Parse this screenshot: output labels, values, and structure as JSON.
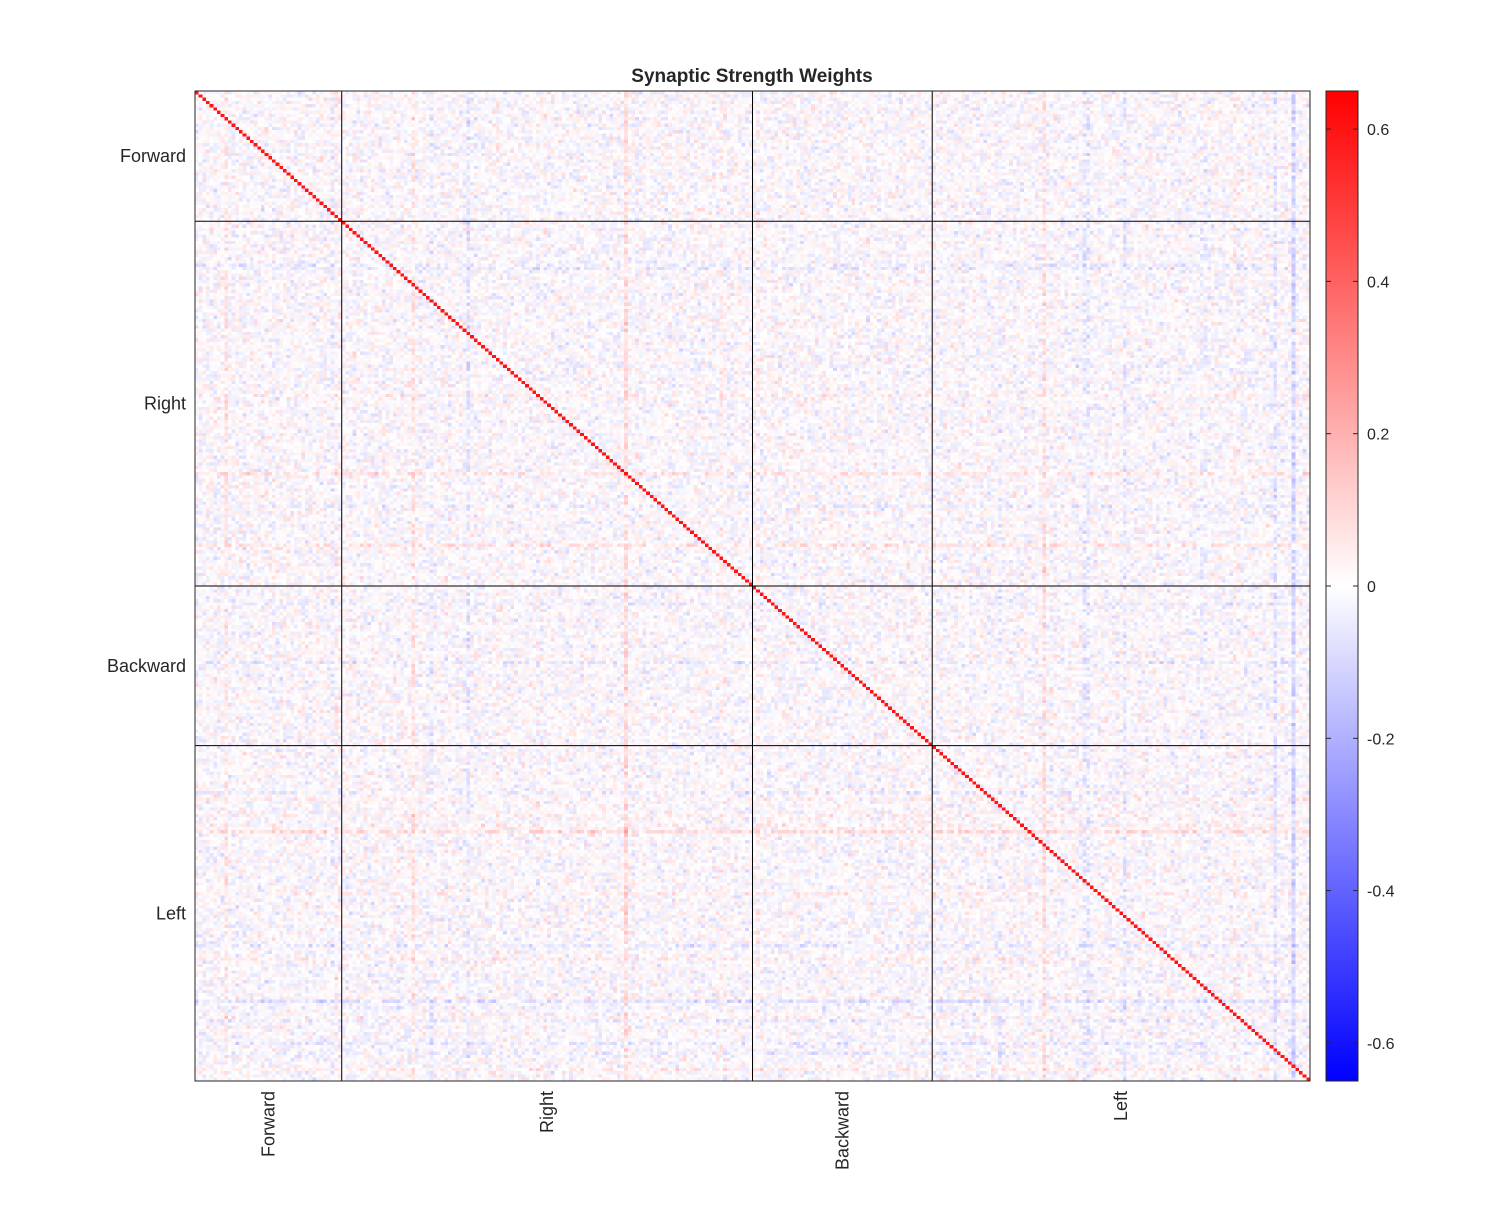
{
  "chart_data": {
    "type": "heatmap",
    "title": "Synaptic Strength Weights",
    "xlabel": "",
    "ylabel": "",
    "groups": [
      {
        "label": "Forward",
        "size": 40
      },
      {
        "label": "Right",
        "size": 112
      },
      {
        "label": "Backward",
        "size": 49
      },
      {
        "label": "Left",
        "size": 103
      }
    ],
    "matrix_size": 304,
    "diagonal_value": 0.6,
    "colormap": {
      "low": "#0000ff",
      "mid": "#ffffff",
      "high": "#ff0000"
    },
    "clim": [
      -0.65,
      0.65
    ],
    "colorbar": {
      "ticks": [
        0.6,
        0.4,
        0.2,
        0,
        -0.2,
        -0.4,
        -0.6
      ],
      "tick_labels": [
        "0.6",
        "0.4",
        "0.2",
        "0",
        "-0.2",
        "-0.4",
        "-0.6"
      ]
    },
    "grid": false,
    "block_separators": true
  }
}
